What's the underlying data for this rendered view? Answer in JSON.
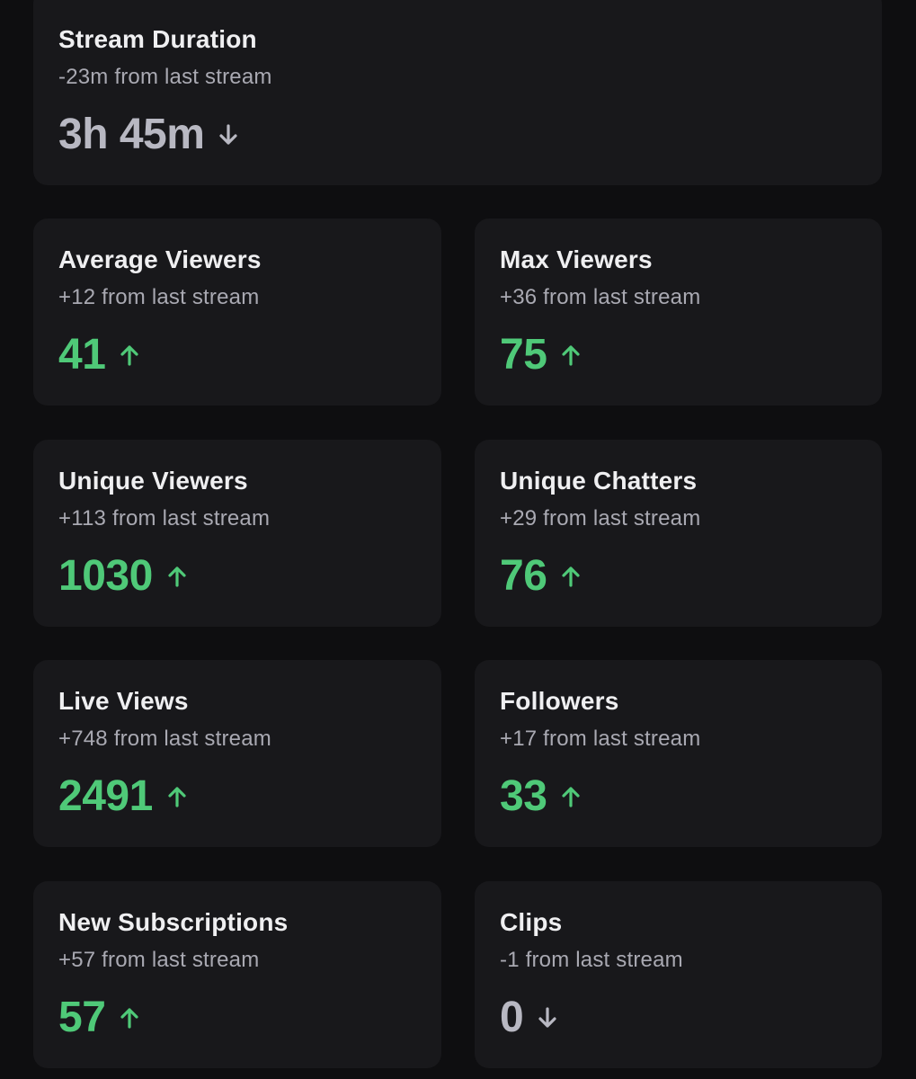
{
  "colors": {
    "background": "#0e0e10",
    "card": "#18181b",
    "positive": "#4fc978",
    "neutral": "#b8b8c2"
  },
  "stats": {
    "stream_duration": {
      "title": "Stream Duration",
      "change": "-23m from last stream",
      "value": "3h 45m",
      "trend": "down",
      "icon": "arrow-down-icon"
    },
    "average_viewers": {
      "title": "Average Viewers",
      "change": "+12 from last stream",
      "value": "41",
      "trend": "up",
      "icon": "arrow-up-icon"
    },
    "max_viewers": {
      "title": "Max Viewers",
      "change": "+36 from last stream",
      "value": "75",
      "trend": "up",
      "icon": "arrow-up-icon"
    },
    "unique_viewers": {
      "title": "Unique Viewers",
      "change": "+113 from last stream",
      "value": "1030",
      "trend": "up",
      "icon": "arrow-up-icon"
    },
    "unique_chatters": {
      "title": "Unique Chatters",
      "change": "+29 from last stream",
      "value": "76",
      "trend": "up",
      "icon": "arrow-up-icon"
    },
    "live_views": {
      "title": "Live Views",
      "change": "+748 from last stream",
      "value": "2491",
      "trend": "up",
      "icon": "arrow-up-icon"
    },
    "followers": {
      "title": "Followers",
      "change": "+17 from last stream",
      "value": "33",
      "trend": "up",
      "icon": "arrow-up-icon"
    },
    "new_subscriptions": {
      "title": "New Subscriptions",
      "change": "+57 from last stream",
      "value": "57",
      "trend": "up",
      "icon": "arrow-up-icon"
    },
    "clips": {
      "title": "Clips",
      "change": "-1 from last stream",
      "value": "0",
      "trend": "down",
      "icon": "arrow-down-icon"
    }
  }
}
